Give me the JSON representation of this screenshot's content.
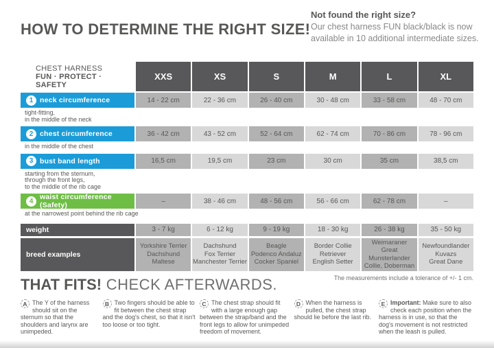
{
  "header": {
    "title": "HOW TO DETERMINE THE RIGHT SIZE!",
    "notice_title": "Not found the right size?",
    "notice_body": "Our chest harness FUN black/black is now available in 10 additional intermediate sizes."
  },
  "table": {
    "label_header_line1": "CHEST HARNESS",
    "label_header_line2": "FUN · PROTECT · SAFETY",
    "sizes": [
      "XXS",
      "XS",
      "S",
      "M",
      "L",
      "XL"
    ],
    "rows": [
      {
        "num": "1",
        "label": "neck circumference",
        "color": "blue",
        "values": [
          "14 - 22 cm",
          "22 - 36 cm",
          "26 - 40 cm",
          "30 - 48 cm",
          "33 - 58 cm",
          "48 - 70 cm"
        ],
        "note_lines": [
          "tight-fitting,",
          "in the middle of the neck"
        ]
      },
      {
        "num": "2",
        "label": "chest circumference",
        "color": "blue",
        "values": [
          "36 - 42 cm",
          "43 - 52 cm",
          "52 - 64 cm",
          "62 - 74 cm",
          "70 - 86 cm",
          "78 - 96 cm"
        ],
        "note_lines": [
          "in the middle of the chest"
        ]
      },
      {
        "num": "3",
        "label": "bust band length",
        "color": "blue",
        "values": [
          "16,5 cm",
          "19,5 cm",
          "23 cm",
          "30 cm",
          "35 cm",
          "38,5 cm"
        ],
        "note_lines": [
          "starting from the sternum,",
          "through the front legs,",
          "to the middle of the rib cage"
        ]
      },
      {
        "num": "4",
        "label": "waist circumference (Safety)",
        "color": "green",
        "values": [
          "–",
          "38 - 46 cm",
          "48 - 56 cm",
          "56 - 66 cm",
          "62 - 78 cm",
          "–"
        ],
        "note_lines": [
          "at the narrowest point behind the rib cage"
        ]
      }
    ],
    "weight": {
      "label": "weight",
      "values": [
        "3 - 7 kg",
        "6 - 12 kg",
        "9 - 19 kg",
        "18 - 30 kg",
        "26 - 38 kg",
        "35 - 50 kg"
      ]
    },
    "breeds": {
      "label": "breed examples",
      "values": [
        [
          "Yorkshire Terrier",
          "Dachshund",
          "Maltese"
        ],
        [
          "Dachshund",
          "Fox Terrier",
          "Manchester Terrier"
        ],
        [
          "Beagle",
          "Podenco Andaluz",
          "Cocker Spaniel"
        ],
        [
          "Border Collie",
          "Retriever",
          "English Setter"
        ],
        [
          "Weimaraner",
          "Great Munsterlander",
          "Collie, Doberman"
        ],
        [
          "Newfoundlander",
          "Kuvazs",
          "Great Dane"
        ]
      ]
    },
    "tolerance_note": "The measurements include a tolerance of +/- 1 cm."
  },
  "footer": {
    "fits_bold": "THAT FITS!",
    "fits_rest": " CHECK AFTERWARDS.",
    "notes": [
      {
        "letter": "A",
        "text": "The Y of the harness should sit on the sternum so that the shoulders and larynx are unimpeded."
      },
      {
        "letter": "B",
        "text": "Two fingers should be able to fit between the chest strap and the dog's chest, so that it isn't too loose or too tight."
      },
      {
        "letter": "C",
        "text": "The chest strap should fit with a large enough gap between the strap/band and the front legs to allow for unimpeded freedom of movement."
      },
      {
        "letter": "D",
        "text": "When the harness is pulled, the chest strap should lie before the last rib."
      },
      {
        "letter": "E",
        "bold_prefix": "Important:",
        "text": " Make sure to also check each position when the harness is in use, so that the dog's movement is not restricted when the leash is pulled."
      }
    ]
  },
  "colors": {
    "accent_blue": "#1b9cd8",
    "accent_green": "#6ebe46",
    "dark_gray": "#58585a",
    "cell_medium": "#b2b2b2",
    "cell_light": "#d8d8d8",
    "text_gray": "#575756"
  }
}
